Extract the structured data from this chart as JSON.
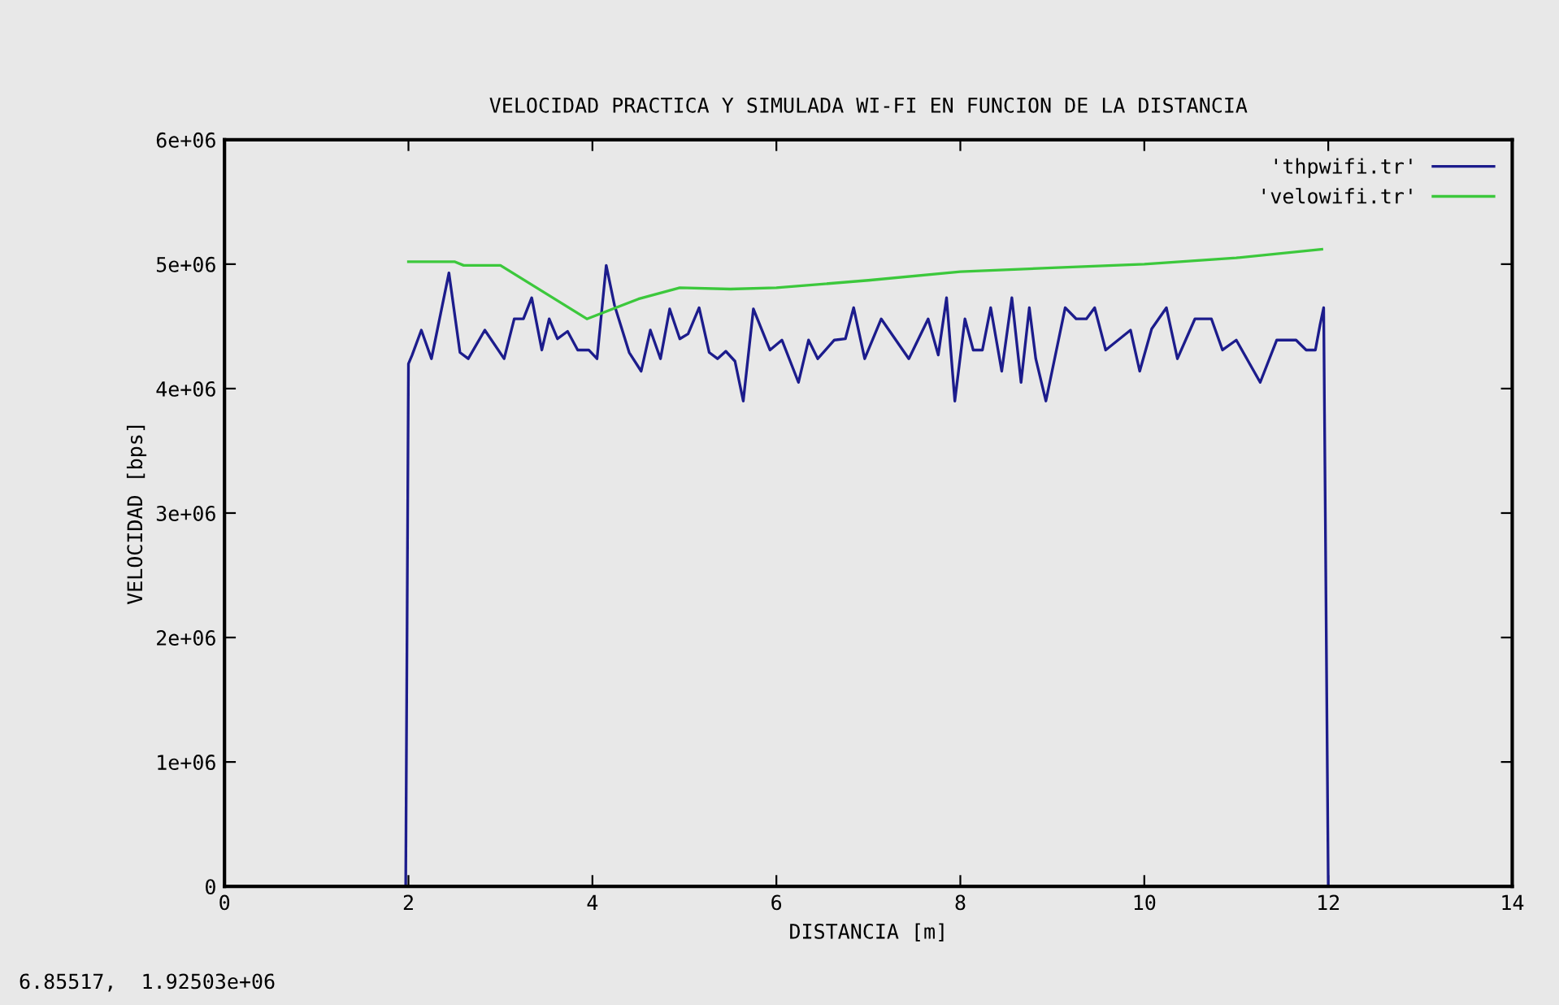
{
  "chart_data": {
    "type": "line",
    "title": "VELOCIDAD PRACTICA Y SIMULADA WI-FI EN FUNCION DE LA DISTANCIA",
    "xlabel": "DISTANCIA [m]",
    "ylabel": "VELOCIDAD [bps]",
    "xlim": [
      0,
      14
    ],
    "xticks": [
      0,
      2,
      4,
      6,
      8,
      10,
      12,
      14
    ],
    "ylim": [
      0,
      6000000
    ],
    "yticks": [
      0,
      {
        "value": 1000000,
        "label": "1e+06"
      },
      {
        "value": 2000000,
        "label": "2e+06"
      },
      {
        "value": 3000000,
        "label": "3e+06"
      },
      {
        "value": 4000000,
        "label": "4e+06"
      },
      {
        "value": 5000000,
        "label": "5e+06"
      },
      {
        "value": 6000000,
        "label": "6e+06"
      }
    ],
    "grid": false,
    "legend": "top right",
    "marker": "none",
    "line_style": "solid",
    "annotations": [
      "6.85517,  1.92503e+06"
    ],
    "series": [
      {
        "name": "'thpwifi.tr'",
        "color": "#1c1c8c",
        "x": [
          1.97,
          2.0,
          2.04,
          2.14,
          2.25,
          2.44,
          2.56,
          2.65,
          2.83,
          3.04,
          3.15,
          3.25,
          3.34,
          3.45,
          3.53,
          3.62,
          3.73,
          3.84,
          3.96,
          4.05,
          4.15,
          4.24,
          4.4,
          4.53,
          4.63,
          4.74,
          4.84,
          4.95,
          5.04,
          5.16,
          5.27,
          5.36,
          5.45,
          5.55,
          5.64,
          5.75,
          5.93,
          6.06,
          6.24,
          6.35,
          6.45,
          6.63,
          6.75,
          6.84,
          6.96,
          7.14,
          7.44,
          7.65,
          7.76,
          7.85,
          7.94,
          8.05,
          8.14,
          8.24,
          8.33,
          8.45,
          8.56,
          8.66,
          8.75,
          8.82,
          8.93,
          9.14,
          9.26,
          9.37,
          9.46,
          9.58,
          9.85,
          9.95,
          10.08,
          10.24,
          10.36,
          10.55,
          10.73,
          10.85,
          11.0,
          11.26,
          11.44,
          11.65,
          11.76,
          11.86,
          11.91,
          11.95,
          12.0
        ],
        "values": [
          0,
          4200000,
          4270000,
          4470000,
          4240000,
          4930000,
          4290000,
          4240000,
          4470000,
          4240000,
          4560000,
          4560000,
          4730000,
          4310000,
          4560000,
          4400000,
          4460000,
          4310000,
          4310000,
          4240000,
          4990000,
          4670000,
          4290000,
          4140000,
          4470000,
          4240000,
          4640000,
          4400000,
          4440000,
          4650000,
          4290000,
          4240000,
          4300000,
          4220000,
          3900000,
          4640000,
          4310000,
          4390000,
          4050000,
          4390000,
          4240000,
          4390000,
          4400000,
          4650000,
          4240000,
          4560000,
          4240000,
          4560000,
          4270000,
          4730000,
          3900000,
          4560000,
          4310000,
          4310000,
          4650000,
          4140000,
          4730000,
          4050000,
          4650000,
          4240000,
          3900000,
          4650000,
          4560000,
          4560000,
          4650000,
          4310000,
          4470000,
          4140000,
          4480000,
          4650000,
          4240000,
          4560000,
          4560000,
          4310000,
          4390000,
          4050000,
          4390000,
          4390000,
          4310000,
          4310000,
          4510000,
          4650000,
          0
        ]
      },
      {
        "name": "'velowifi.tr'",
        "color": "#3cc83c",
        "x": [
          2.0,
          2.5,
          2.6,
          3.0,
          3.94,
          4.5,
          4.95,
          5.5,
          6.0,
          7.0,
          8.0,
          9.0,
          10.0,
          11.0,
          11.93
        ],
        "values": [
          5020000,
          5020000,
          4990000,
          4990000,
          4560000,
          4720000,
          4810000,
          4800000,
          4810000,
          4870000,
          4940000,
          4970000,
          5000000,
          5050000,
          5120000
        ]
      }
    ]
  }
}
